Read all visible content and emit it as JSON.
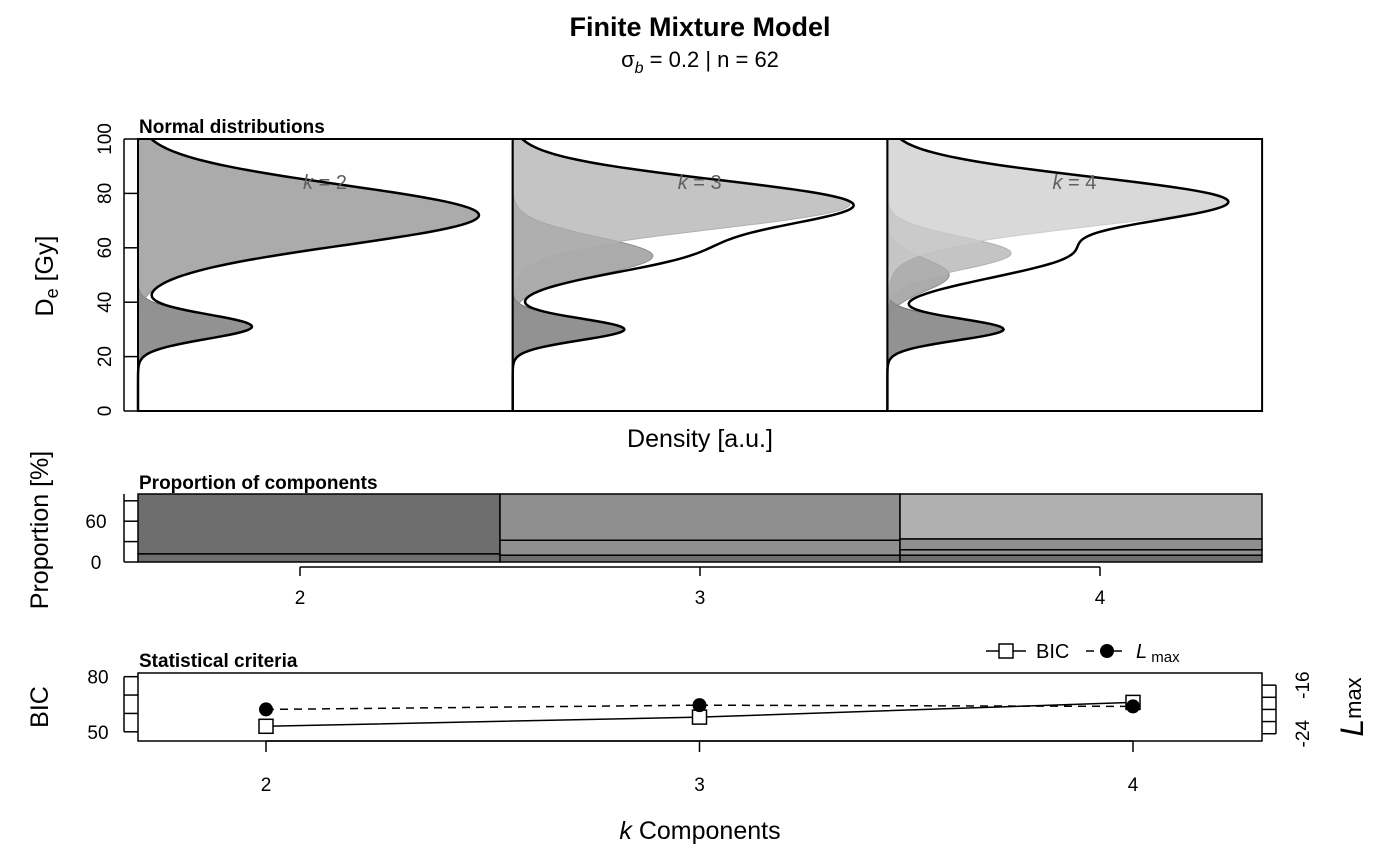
{
  "header": {
    "title": "Finite Mixture Model",
    "subtitle_sigma": "σ",
    "subtitle_sigma_sub": "b",
    "subtitle_rest": " = 0.2 | n = 62"
  },
  "colors": {
    "component_1": "#6e6e6e",
    "component_2": "#8f8f8f",
    "component_3": "#b0b0b0",
    "component_4": "#cccccc",
    "frame": "#000000"
  },
  "chart_data": [
    {
      "type": "area",
      "panel_title": "Normal distributions",
      "ylabel_main": "D",
      "ylabel_sub": "e",
      "ylabel_rest": " [Gy]",
      "xlabel": "Density [a.u.]",
      "ylim": [
        0,
        100
      ],
      "yticks": [
        0,
        20,
        40,
        60,
        80,
        100
      ],
      "panels": [
        {
          "k": 2,
          "label": "k = 2",
          "components": [
            {
              "mean": 31,
              "sd": 4.5,
              "proportion": 0.12
            },
            {
              "mean": 72,
              "sd": 11,
              "proportion": 0.88
            }
          ]
        },
        {
          "k": 3,
          "label": "k = 3",
          "components": [
            {
              "mean": 30,
              "sd": 4,
              "proportion": 0.1
            },
            {
              "mean": 57,
              "sd": 7,
              "proportion": 0.22
            },
            {
              "mean": 76,
              "sd": 9,
              "proportion": 0.68
            }
          ]
        },
        {
          "k": 4,
          "label": "k = 4",
          "components": [
            {
              "mean": 30,
              "sd": 4,
              "proportion": 0.1
            },
            {
              "mean": 50,
              "sd": 6,
              "proportion": 0.08
            },
            {
              "mean": 58,
              "sd": 6,
              "proportion": 0.16
            },
            {
              "mean": 77,
              "sd": 9,
              "proportion": 0.66
            }
          ]
        }
      ]
    },
    {
      "type": "bar",
      "panel_title": "Proportion of components",
      "ylabel": "Proportion [%]",
      "ylim": [
        0,
        100
      ],
      "yticks": [
        0,
        60
      ],
      "categories": [
        "2",
        "3",
        "4"
      ],
      "stacks": [
        [
          12,
          88
        ],
        [
          10,
          22,
          68
        ],
        [
          10,
          8,
          16,
          66
        ]
      ]
    },
    {
      "type": "line",
      "panel_title": "Statistical criteria",
      "xlabel_italic": "k",
      "xlabel_rest": " Components",
      "x": [
        2,
        3,
        4
      ],
      "xticks": [
        "2",
        "3",
        "4"
      ],
      "left_axis": {
        "label": "BIC",
        "ylim": [
          45,
          82
        ],
        "ticks": [
          50,
          60,
          70,
          80
        ],
        "tick_labels": [
          "50",
          "",
          "",
          "80"
        ]
      },
      "right_axis": {
        "label_main": "L",
        "label_sub": "max",
        "ylim": [
          -25.2,
          -14
        ],
        "ticks": [
          -24,
          -22,
          -20,
          -18,
          -16
        ],
        "tick_labels": [
          "-24",
          "",
          "",
          "",
          "-16"
        ]
      },
      "series": [
        {
          "name": "BIC",
          "axis": "left",
          "values": [
            53,
            58,
            66
          ],
          "marker": "square",
          "line": "solid"
        },
        {
          "name": "L",
          "name_sub": "max",
          "axis": "right",
          "values": [
            -20.0,
            -19.3,
            -19.5
          ],
          "marker": "circle",
          "line": "dashed"
        }
      ]
    }
  ]
}
